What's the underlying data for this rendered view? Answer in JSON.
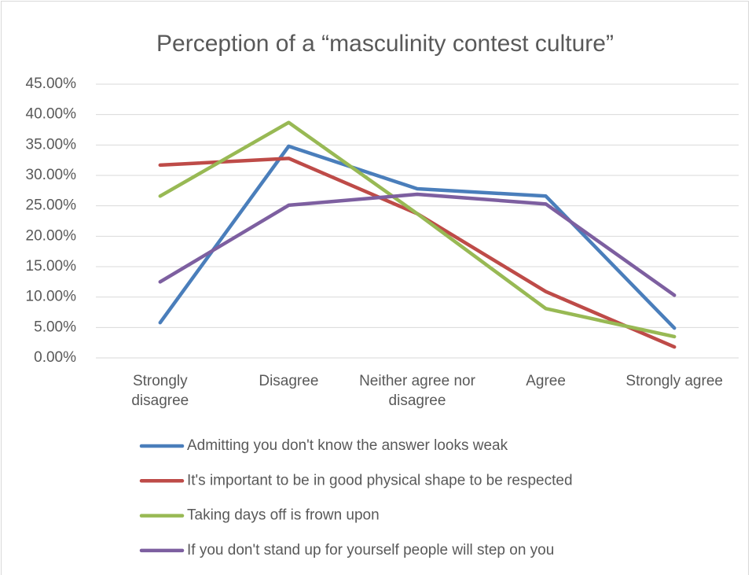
{
  "chart_data": {
    "type": "line",
    "title": "Perception of a “masculinity contest culture”",
    "categories": [
      "Strongly disagree",
      "Disagree",
      "Neither agree nor disagree",
      "Agree",
      "Strongly agree"
    ],
    "series": [
      {
        "name": "Admitting you don't know the answer looks weak",
        "color": "#4a7ebb",
        "values": [
          5.8,
          34.8,
          27.8,
          26.6,
          4.9
        ]
      },
      {
        "name": "It's important to be in good physical shape to be respected",
        "color": "#be4b48",
        "values": [
          31.7,
          32.8,
          23.7,
          10.9,
          1.8
        ]
      },
      {
        "name": "Taking days off is frown upon",
        "color": "#98b954",
        "values": [
          26.6,
          38.7,
          23.7,
          8.1,
          3.5
        ]
      },
      {
        "name": "If you don't stand up for yourself people will step on you",
        "color": "#7d5fa0",
        "values": [
          12.5,
          25.1,
          26.9,
          25.3,
          10.3
        ]
      }
    ],
    "ylim": [
      0,
      45
    ],
    "yticks": [
      {
        "value": 0,
        "label": "0.00%"
      },
      {
        "value": 5,
        "label": "5.00%"
      },
      {
        "value": 10,
        "label": "10.00%"
      },
      {
        "value": 15,
        "label": "15.00%"
      },
      {
        "value": 20,
        "label": "20.00%"
      },
      {
        "value": 25,
        "label": "25.00%"
      },
      {
        "value": 30,
        "label": "30.00%"
      },
      {
        "value": 35,
        "label": "35.00%"
      },
      {
        "value": 40,
        "label": "40.00%"
      },
      {
        "value": 45,
        "label": "45.00%"
      }
    ],
    "grid": true,
    "legend": "bottom"
  }
}
